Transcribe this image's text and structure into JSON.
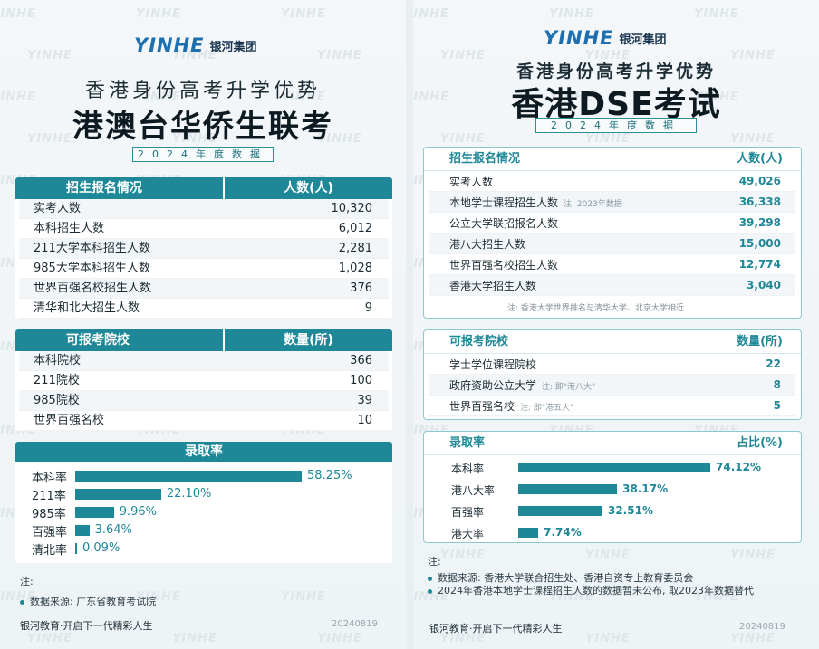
{
  "watermark": "YINHE",
  "left": {
    "logo": {
      "mark": "YINHE",
      "name": "银河集团"
    },
    "subtitle": "香港身份高考升学优势",
    "title": "港澳台华侨生联考",
    "year": "2024年度数据",
    "enroll": {
      "header": [
        "招生报名情况",
        "人数(人)"
      ],
      "rows": [
        {
          "label": "实考人数",
          "value": "10,320"
        },
        {
          "label": "本科招生人数",
          "value": "6,012"
        },
        {
          "label": "211大学本科招生人数",
          "value": "2,281"
        },
        {
          "label": "985大学本科招生人数",
          "value": "1,028"
        },
        {
          "label": "世界百强名校招生人数",
          "value": "376"
        },
        {
          "label": "清华和北大招生人数",
          "value": "9"
        }
      ]
    },
    "schools": {
      "header": [
        "可报考院校",
        "数量(所)"
      ],
      "rows": [
        {
          "label": "本科院校",
          "value": "366"
        },
        {
          "label": "211院校",
          "value": "100"
        },
        {
          "label": "985院校",
          "value": "39"
        },
        {
          "label": "世界百强名校",
          "value": "10"
        }
      ]
    },
    "rates": {
      "header": "录取率",
      "rows": [
        {
          "label": "本科率",
          "value": 58.25,
          "text": "58.25%"
        },
        {
          "label": "211率",
          "value": 22.1,
          "text": "22.10%"
        },
        {
          "label": "985率",
          "value": 9.96,
          "text": "9.96%"
        },
        {
          "label": "百强率",
          "value": 3.64,
          "text": "3.64%"
        },
        {
          "label": "清北率",
          "value": 0.09,
          "text": "0.09%"
        }
      ]
    },
    "notes_label": "注:",
    "notes": [
      "数据来源: 广东省教育考试院"
    ],
    "footer": "银河教育·开启下一代精彩人生",
    "date": "20240819"
  },
  "right": {
    "logo": {
      "mark": "YINHE",
      "name": "银河集团"
    },
    "subtitle": "香港身份高考升学优势",
    "title": "香港DSE考试",
    "year": "2024年度数据",
    "enroll": {
      "header": [
        "招生报名情况",
        "人数(人)"
      ],
      "rows": [
        {
          "label": "实考人数",
          "value": "49,026",
          "note": ""
        },
        {
          "label": "本地学士课程招生人数",
          "value": "36,338",
          "note": "注: 2023年数据"
        },
        {
          "label": "公立大学联招报名人数",
          "value": "39,298",
          "note": ""
        },
        {
          "label": "港八大招生人数",
          "value": "15,000",
          "note": ""
        },
        {
          "label": "世界百强名校招生人数",
          "value": "12,774",
          "note": ""
        },
        {
          "label": "香港大学招生人数",
          "value": "3,040",
          "note": ""
        }
      ],
      "footnote": "注: 香港大学世界排名与清华大学、北京大学相近"
    },
    "schools": {
      "header": [
        "可报考院校",
        "数量(所)"
      ],
      "rows": [
        {
          "label": "学士学位课程院校",
          "value": "22",
          "note": ""
        },
        {
          "label": "政府资助公立大学",
          "value": "8",
          "note": "注: 即\"港八大\""
        },
        {
          "label": "世界百强名校",
          "value": "5",
          "note": "注: 即\"港五大\""
        }
      ]
    },
    "rates": {
      "header": [
        "录取率",
        "占比(%)"
      ],
      "rows": [
        {
          "label": "本科率",
          "value": 74.12,
          "text": "74.12%"
        },
        {
          "label": "港八大率",
          "value": 38.17,
          "text": "38.17%"
        },
        {
          "label": "百强率",
          "value": 32.51,
          "text": "32.51%"
        },
        {
          "label": "港大率",
          "value": 7.74,
          "text": "7.74%"
        }
      ]
    },
    "notes_label": "注:",
    "notes": [
      "数据来源: 香港大学联合招生处、香港自资专上教育委员会",
      "2024年香港本地学士课程招生人数的数据暂未公布, 取2023年数据替代"
    ],
    "footer": "银河教育·开启下一代精彩人生",
    "date": "20240819"
  }
}
